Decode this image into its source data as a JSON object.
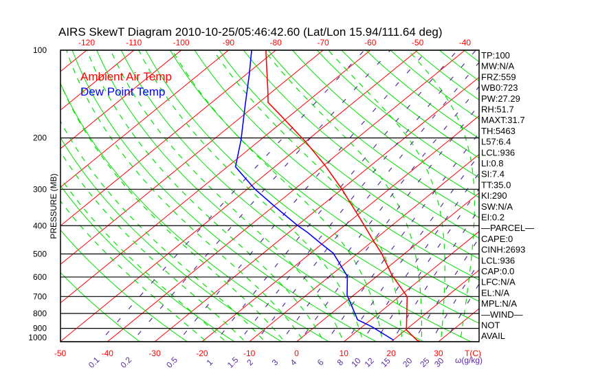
{
  "chart_data": {
    "type": "line",
    "title": "AIRS SkewT Diagram 2010-10-25/05:46:42.60 (Lat/Lon 15.94/111.64 deg)",
    "ylabel": "PRESSURE (MB)",
    "xlabel": "T(C)",
    "mixing_ratio_label": "ω(g/kg)",
    "pressure_ticks": [
      100,
      200,
      300,
      400,
      500,
      600,
      700,
      800,
      900,
      1000
    ],
    "top_temp_ticks": [
      -120,
      -110,
      -100,
      -90,
      -80,
      -70,
      -60,
      -50,
      -40
    ],
    "bottom_temp_ticks": [
      -50,
      -40,
      -30,
      -20,
      -10,
      0,
      10,
      20,
      30
    ],
    "mixing_ratio_ticks": [
      "0.1",
      "0.2",
      "0.5",
      "1",
      "1.5",
      "2",
      "3",
      "4",
      "6",
      "8",
      "10",
      "12",
      "15",
      "20",
      "25",
      "30"
    ],
    "ylim": [
      1000,
      100
    ],
    "legend": [
      {
        "name": "Ambient Air Temp",
        "color": "#ff0000"
      },
      {
        "name": "Dew Point Temp",
        "color": "#0000ff"
      }
    ],
    "series": [
      {
        "name": "Ambient Air Temp",
        "color": "#ff0000",
        "pressure": [
          100,
          138,
          151,
          167,
          207,
          248,
          299,
          389,
          450,
          497,
          590,
          687,
          703,
          912,
          989,
          1000
        ],
        "temperature": [
          -82.1,
          -71.1,
          -68.1,
          -62.2,
          -49.7,
          -39.8,
          -30.1,
          -17.1,
          -10.0,
          -5.0,
          2.8,
          10.7,
          11.8,
          20.2,
          25.1,
          26.2
        ]
      },
      {
        "name": "Dew Point Temp",
        "color": "#0000ff",
        "pressure": [
          100,
          122,
          155,
          203,
          251,
          264,
          299,
          343,
          399,
          422,
          462,
          497,
          597,
          692,
          841,
          887,
          989
        ],
        "temperature": [
          -85.1,
          -79.1,
          -72.1,
          -64.1,
          -58.3,
          -55.5,
          -48.5,
          -39.8,
          -30.0,
          -26.0,
          -20.1,
          -15.2,
          -6.2,
          -1.4,
          7.2,
          11.9,
          20.2
        ]
      }
    ],
    "stats": [
      "TP:100",
      "MW:N/A",
      "FRZ:559",
      "WB0:723",
      "PW:27.29",
      "RH:51.7",
      "MAXT:31.7",
      "TH:5463",
      "L57:6.4",
      "LCL:936",
      "LI:0.8",
      "SI:7.4",
      "TT:35.0",
      "KI:290",
      "SW:N/A",
      "EI:0.2",
      "—PARCEL—",
      "CAPE:0",
      "CINH:2693",
      "LCL:936",
      "CAP:0.0",
      "LFC:N/A",
      "EL:N/A",
      "MPL:N/A",
      "—WIND—",
      "NOT",
      "AVAIL"
    ],
    "colors": {
      "isotherm": "#ff0000",
      "dry_adiabat": "#00e000",
      "moist_adiabat": "#00e000",
      "mixing_ratio": "#5a2a9a",
      "grid": "#000000"
    }
  }
}
